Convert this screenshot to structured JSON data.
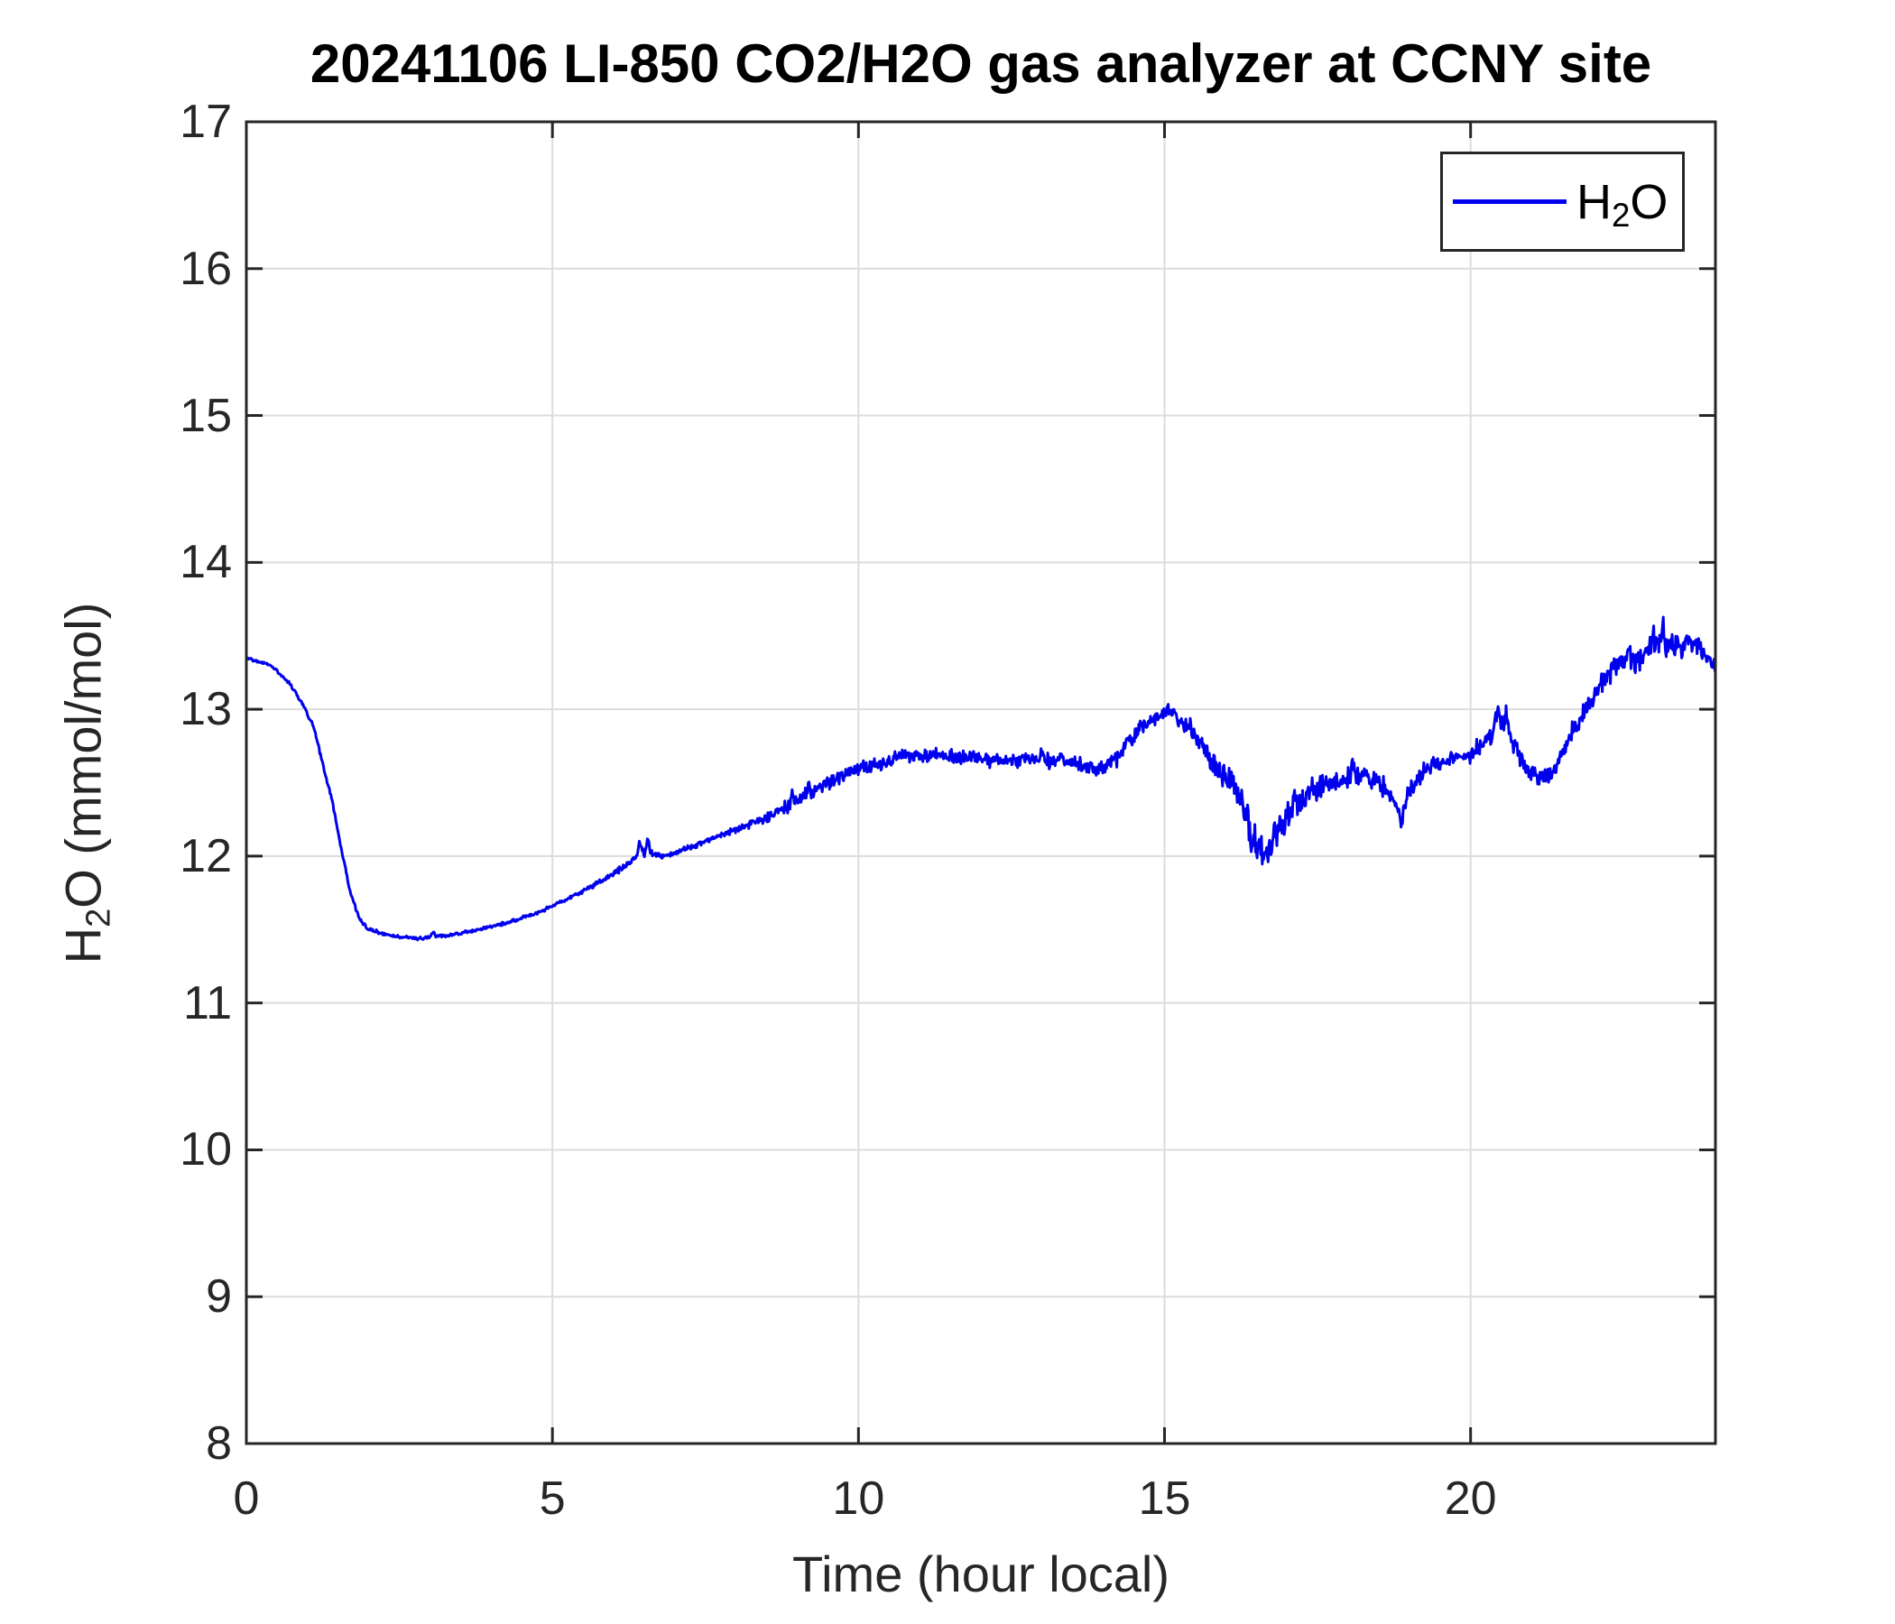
{
  "title": "20241106 LI-850 CO2/H2O gas analyzer at CCNY site",
  "axes": {
    "x_label": "Time (hour local)",
    "y_label_parts": {
      "pre": "H",
      "sub": "2",
      "post": "O (mmol/mol)"
    },
    "x_ticks": [
      0,
      5,
      10,
      15,
      20
    ],
    "y_ticks": [
      8,
      9,
      10,
      11,
      12,
      13,
      14,
      15,
      16,
      17
    ],
    "x_range": [
      0,
      24
    ],
    "y_range": [
      8,
      17
    ],
    "grid": true
  },
  "legend": {
    "entries": [
      {
        "label_pre": "H",
        "label_sub": "2",
        "label_post": "O",
        "color": "#0000EE"
      }
    ],
    "position": "northeast"
  },
  "colors": {
    "line": "#0000EE",
    "grid": "#dcdcdc",
    "axis": "#262626",
    "title": "#000000"
  },
  "chart_data": {
    "type": "line",
    "title": "20241106 LI-850 CO2/H2O gas analyzer at CCNY site",
    "xlabel": "Time (hour local)",
    "ylabel": "H2O (mmol/mol)",
    "xlim": [
      0,
      24
    ],
    "ylim": [
      8,
      17
    ],
    "grid": true,
    "legend_position": "northeast",
    "series": [
      {
        "name": "H2O",
        "color": "#0000EE",
        "units": "mmol/mol",
        "keypoints": [
          [
            0,
            13.35
          ],
          [
            0.4,
            13.3
          ],
          [
            0.7,
            13.18
          ],
          [
            0.9,
            13.05
          ],
          [
            1.1,
            12.88
          ],
          [
            1.25,
            12.62
          ],
          [
            1.4,
            12.38
          ],
          [
            1.55,
            12.05
          ],
          [
            1.7,
            11.75
          ],
          [
            1.85,
            11.57
          ],
          [
            2,
            11.5
          ],
          [
            2.3,
            11.46
          ],
          [
            2.8,
            11.44
          ],
          [
            3.3,
            11.46
          ],
          [
            3.8,
            11.5
          ],
          [
            4.3,
            11.55
          ],
          [
            4.8,
            11.62
          ],
          [
            5.3,
            11.72
          ],
          [
            5.8,
            11.83
          ],
          [
            6.2,
            11.93
          ],
          [
            6.45,
            12.02
          ],
          [
            6.6,
            12.03
          ],
          [
            6.75,
            11.99
          ],
          [
            7,
            12.02
          ],
          [
            7.5,
            12.1
          ],
          [
            8,
            12.18
          ],
          [
            8.5,
            12.26
          ],
          [
            9,
            12.38
          ],
          [
            9.5,
            12.5
          ],
          [
            9.9,
            12.58
          ],
          [
            10.3,
            12.63
          ],
          [
            10.8,
            12.68
          ],
          [
            11.3,
            12.69
          ],
          [
            11.8,
            12.67
          ],
          [
            12.3,
            12.65
          ],
          [
            12.8,
            12.66
          ],
          [
            13.3,
            12.65
          ],
          [
            13.6,
            12.63
          ],
          [
            13.9,
            12.58
          ],
          [
            14.2,
            12.66
          ],
          [
            14.6,
            12.87
          ],
          [
            14.9,
            12.95
          ],
          [
            15.05,
            13
          ],
          [
            15.25,
            12.92
          ],
          [
            15.5,
            12.82
          ],
          [
            15.8,
            12.65
          ],
          [
            16.1,
            12.48
          ],
          [
            16.35,
            12.25
          ],
          [
            16.55,
            12.05
          ],
          [
            16.7,
            12.08
          ],
          [
            16.9,
            12.2
          ],
          [
            17.1,
            12.32
          ],
          [
            17.4,
            12.44
          ],
          [
            17.7,
            12.5
          ],
          [
            18,
            12.52
          ],
          [
            18.3,
            12.55
          ],
          [
            18.6,
            12.46
          ],
          [
            18.85,
            12.32
          ],
          [
            19.05,
            12.48
          ],
          [
            19.3,
            12.6
          ],
          [
            19.7,
            12.66
          ],
          [
            20,
            12.7
          ],
          [
            20.3,
            12.82
          ],
          [
            20.5,
            12.93
          ],
          [
            20.7,
            12.78
          ],
          [
            20.9,
            12.6
          ],
          [
            21.1,
            12.54
          ],
          [
            21.35,
            12.56
          ],
          [
            21.6,
            12.8
          ],
          [
            21.9,
            13
          ],
          [
            22.2,
            13.22
          ],
          [
            22.45,
            13.35
          ],
          [
            22.7,
            13.33
          ],
          [
            22.95,
            13.42
          ],
          [
            23.2,
            13.44
          ],
          [
            23.45,
            13.42
          ],
          [
            23.65,
            13.48
          ],
          [
            23.8,
            13.38
          ],
          [
            24,
            13.27
          ]
        ],
        "noise_amp": [
          [
            0,
            0.008
          ],
          [
            1,
            0.012
          ],
          [
            2,
            0.012
          ],
          [
            3,
            0.01
          ],
          [
            4,
            0.01
          ],
          [
            5,
            0.012
          ],
          [
            6,
            0.018
          ],
          [
            6.5,
            0.03
          ],
          [
            7,
            0.015
          ],
          [
            8,
            0.022
          ],
          [
            8.6,
            0.035
          ],
          [
            9,
            0.045
          ],
          [
            9.5,
            0.05
          ],
          [
            10,
            0.045
          ],
          [
            11,
            0.045
          ],
          [
            12,
            0.045
          ],
          [
            13,
            0.05
          ],
          [
            13.8,
            0.05
          ],
          [
            14.3,
            0.055
          ],
          [
            14.8,
            0.04
          ],
          [
            15.1,
            0.035
          ],
          [
            15.5,
            0.08
          ],
          [
            16,
            0.1
          ],
          [
            16.5,
            0.12
          ],
          [
            16.8,
            0.1
          ],
          [
            17.2,
            0.08
          ],
          [
            17.8,
            0.075
          ],
          [
            18.3,
            0.07
          ],
          [
            18.8,
            0.055
          ],
          [
            19.2,
            0.06
          ],
          [
            19.8,
            0.055
          ],
          [
            20.2,
            0.06
          ],
          [
            20.6,
            0.08
          ],
          [
            21,
            0.05
          ],
          [
            21.4,
            0.05
          ],
          [
            21.8,
            0.07
          ],
          [
            22.3,
            0.08
          ],
          [
            22.8,
            0.09
          ],
          [
            23.3,
            0.08
          ],
          [
            23.7,
            0.07
          ],
          [
            24,
            0.05
          ]
        ],
        "spikes": [
          [
            3.05,
            0.04,
            0.05
          ],
          [
            6.42,
            0.09,
            0.05
          ],
          [
            6.56,
            0.11,
            0.04
          ],
          [
            8.92,
            0.07,
            0.04
          ],
          [
            9.18,
            0.06,
            0.04
          ],
          [
            13,
            0.06,
            0.03
          ],
          [
            14.38,
            0.07,
            0.04
          ],
          [
            16.42,
            -0.12,
            0.05
          ],
          [
            16.62,
            -0.1,
            0.04
          ],
          [
            17.12,
            0.1,
            0.04
          ],
          [
            18.08,
            0.14,
            0.05
          ],
          [
            18.88,
            -0.1,
            0.06
          ],
          [
            20.44,
            0.12,
            0.05
          ],
          [
            20.58,
            0.1,
            0.04
          ],
          [
            22.6,
            0.08,
            0.04
          ],
          [
            22.97,
            0.1,
            0.05
          ],
          [
            23.15,
            0.12,
            0.05
          ]
        ]
      }
    ]
  }
}
